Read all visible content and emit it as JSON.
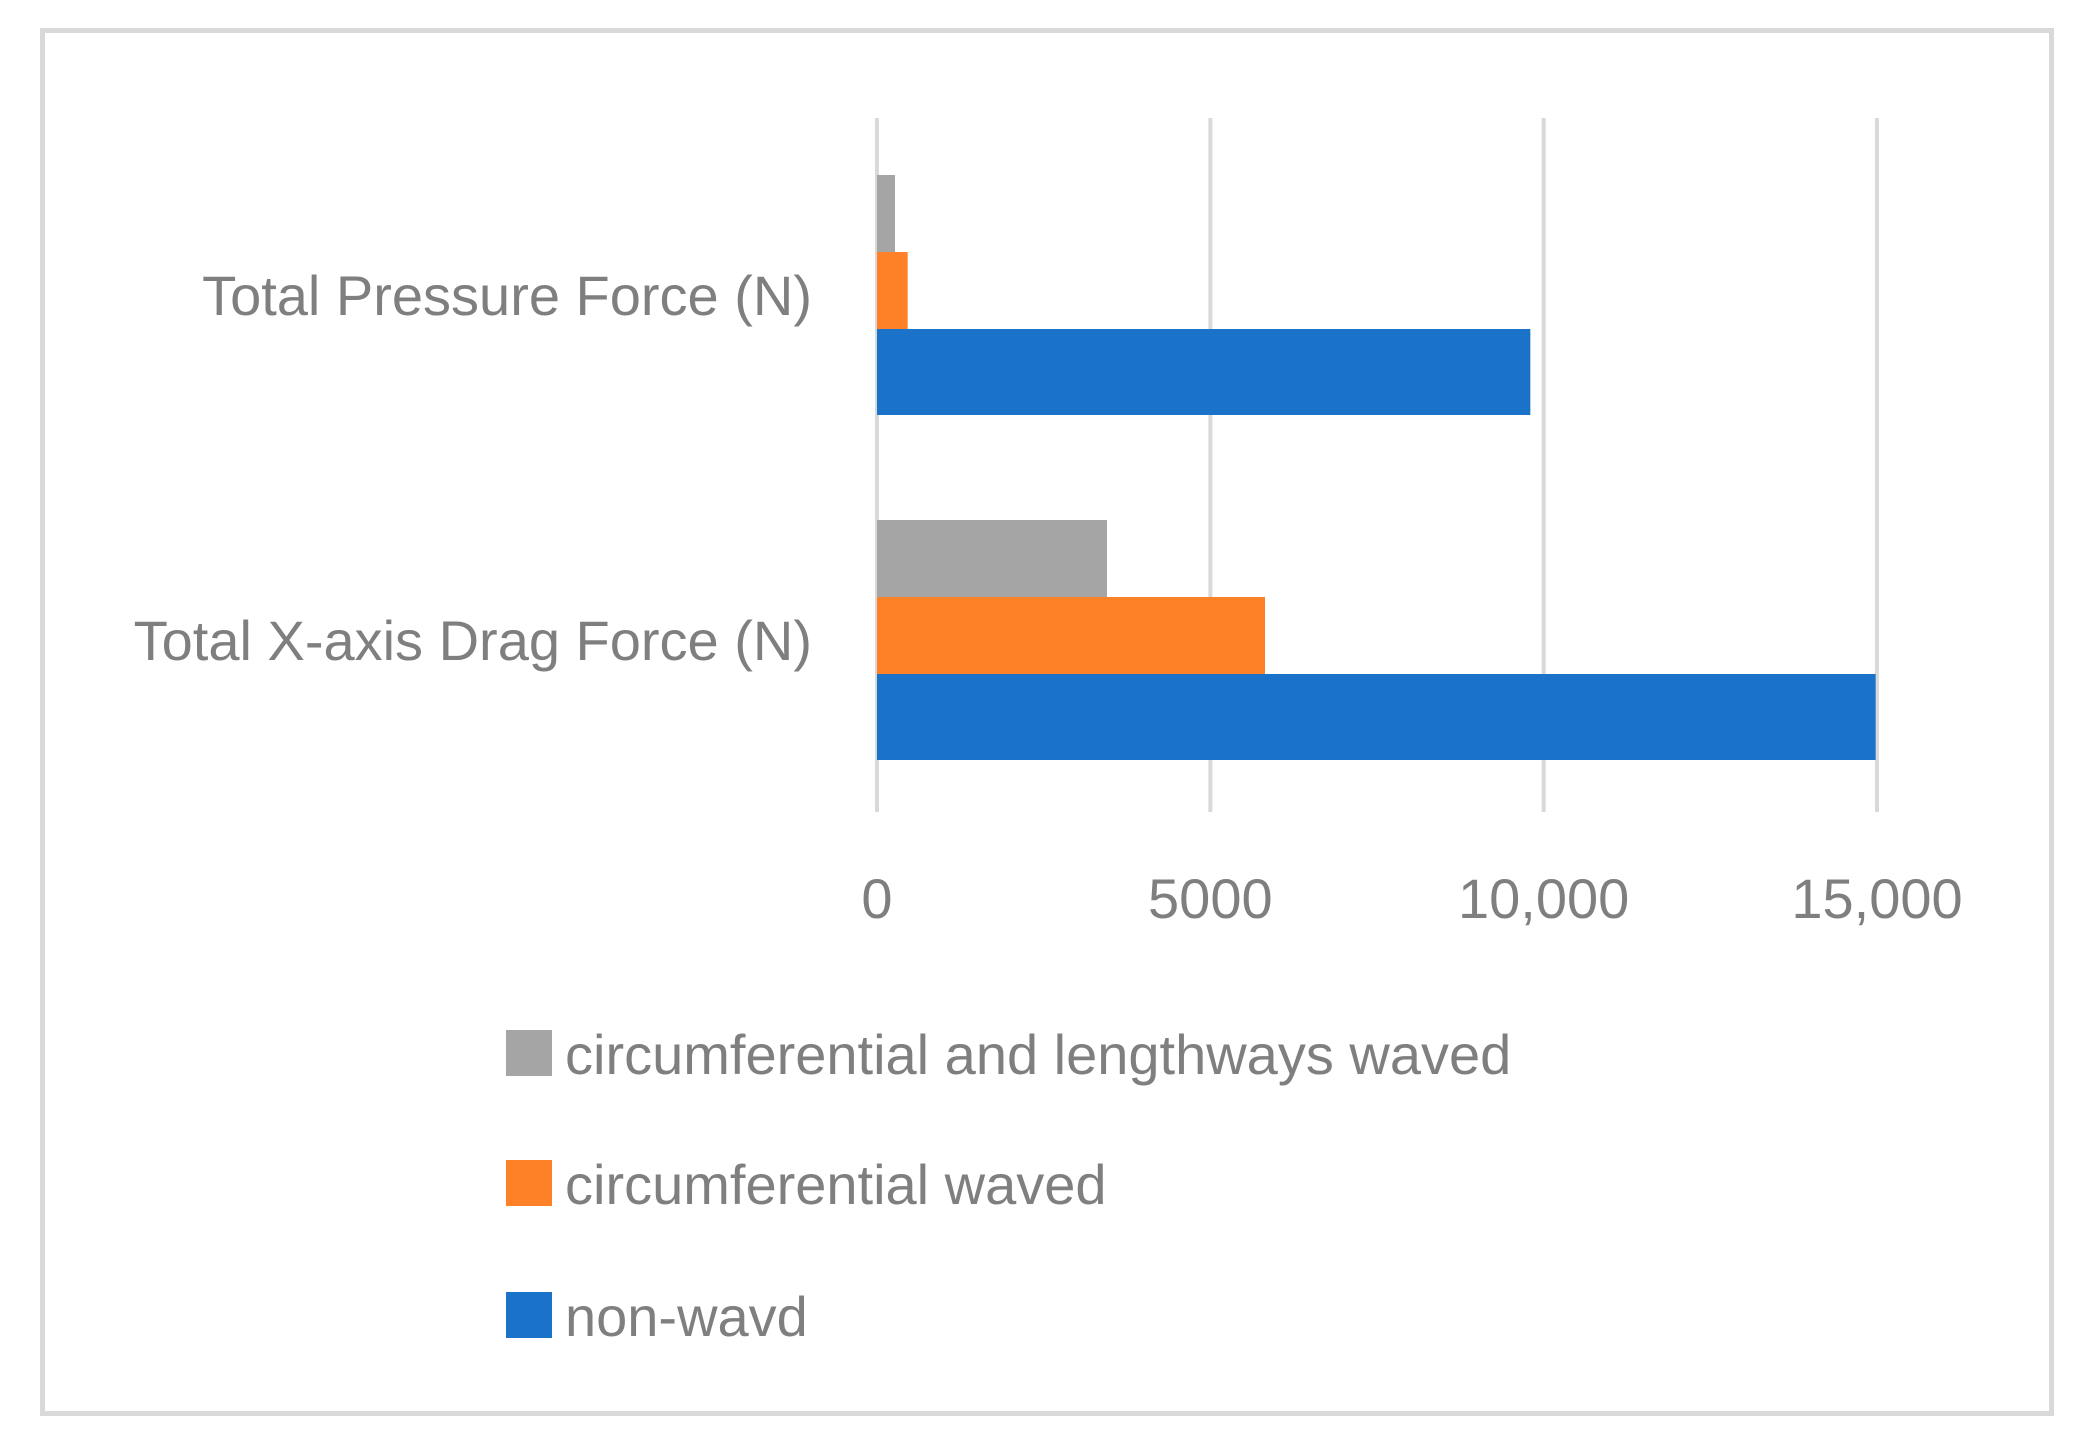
{
  "chart_data": {
    "type": "bar",
    "orientation": "horizontal",
    "categories": [
      "Total Pressure Force (N)",
      "Total X-axis Drag Force (N)"
    ],
    "series": [
      {
        "name": "circumferential and lengthways waved",
        "color": "#a5a5a5",
        "values": [
          270,
          3450
        ]
      },
      {
        "name": "circumferential waved",
        "color": "#fe8027",
        "values": [
          460,
          5820
        ]
      },
      {
        "name": "non-wavd",
        "color": "#1a73c9",
        "values": [
          9800,
          14980
        ]
      }
    ],
    "x_ticks": [
      {
        "value": 0,
        "label": "0"
      },
      {
        "value": 5000,
        "label": "5000"
      },
      {
        "value": 10000,
        "label": "10,000"
      },
      {
        "value": 15000,
        "label": "15,000"
      }
    ],
    "xlim": [
      0,
      15000
    ],
    "grid": true,
    "legend_position": "bottom",
    "title": "",
    "xlabel": "",
    "ylabel": ""
  }
}
